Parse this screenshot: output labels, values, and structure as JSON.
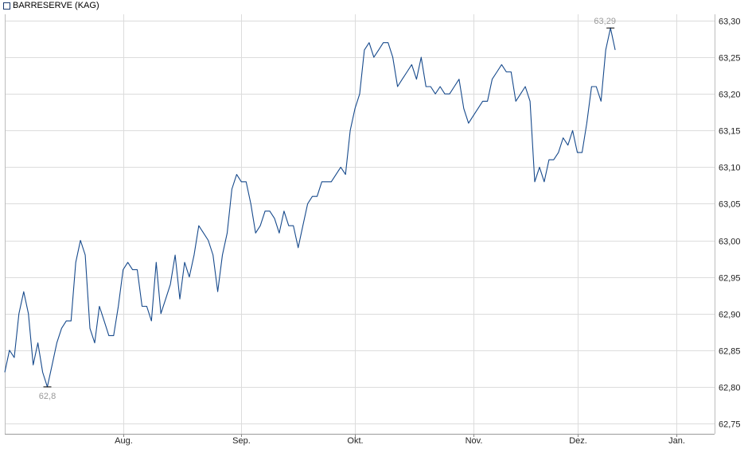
{
  "chart_data": {
    "type": "line",
    "legend": {
      "label": "BARRESERVE (KAG)",
      "placement": "top-left"
    },
    "color": "#174a8c",
    "grid": true,
    "ylim": [
      62.75,
      63.3
    ],
    "yticks": [
      "62,75",
      "62,80",
      "62,85",
      "62,90",
      "62,95",
      "63,00",
      "63,05",
      "63,10",
      "63,15",
      "63,20",
      "63,25",
      "63,30"
    ],
    "ytick_values": [
      62.75,
      62.8,
      62.85,
      62.9,
      62.95,
      63.0,
      63.05,
      63.1,
      63.15,
      63.2,
      63.25,
      63.3
    ],
    "xtick_labels": [
      "Aug.",
      "Sep.",
      "Okt.",
      "Nov.",
      "Dez.",
      "Jan."
    ],
    "xtick_values": [
      25,
      50,
      74,
      99,
      121,
      142
    ],
    "xlim": [
      0,
      150
    ],
    "min_label": "62,8",
    "max_label": "63,29",
    "series": [
      {
        "values": [
          62.82,
          62.85,
          62.84,
          62.9,
          62.93,
          62.9,
          62.83,
          62.86,
          62.82,
          62.8,
          62.83,
          62.86,
          62.88,
          62.89,
          62.89,
          62.97,
          63.0,
          62.98,
          62.88,
          62.86,
          62.91,
          62.89,
          62.87,
          62.87,
          62.91,
          62.96,
          62.97,
          62.96,
          62.96,
          62.91,
          62.91,
          62.89,
          62.97,
          62.9,
          62.92,
          62.94,
          62.98,
          62.92,
          62.97,
          62.95,
          62.98,
          63.02,
          63.01,
          63.0,
          62.98,
          62.93,
          62.98,
          63.01,
          63.07,
          63.09,
          63.08,
          63.08,
          63.05,
          63.01,
          63.02,
          63.04,
          63.04,
          63.03,
          63.01,
          63.04,
          63.02,
          63.02,
          62.99,
          63.02,
          63.05,
          63.06,
          63.06,
          63.08,
          63.08,
          63.08,
          63.09,
          63.1,
          63.09,
          63.15,
          63.18,
          63.2,
          63.26,
          63.27,
          63.25,
          63.26,
          63.27,
          63.27,
          63.25,
          63.21,
          63.22,
          63.23,
          63.24,
          63.22,
          63.25,
          63.21,
          63.21,
          63.2,
          63.21,
          63.2,
          63.2,
          63.21,
          63.22,
          63.18,
          63.16,
          63.17,
          63.18,
          63.19,
          63.19,
          63.22,
          63.23,
          63.24,
          63.23,
          63.23,
          63.19,
          63.2,
          63.21,
          63.19,
          63.08,
          63.1,
          63.08,
          63.11,
          63.11,
          63.12,
          63.14,
          63.13,
          63.15,
          63.12,
          63.12,
          63.16,
          63.21,
          63.21,
          63.19,
          63.26,
          63.29,
          63.26
        ]
      }
    ]
  }
}
